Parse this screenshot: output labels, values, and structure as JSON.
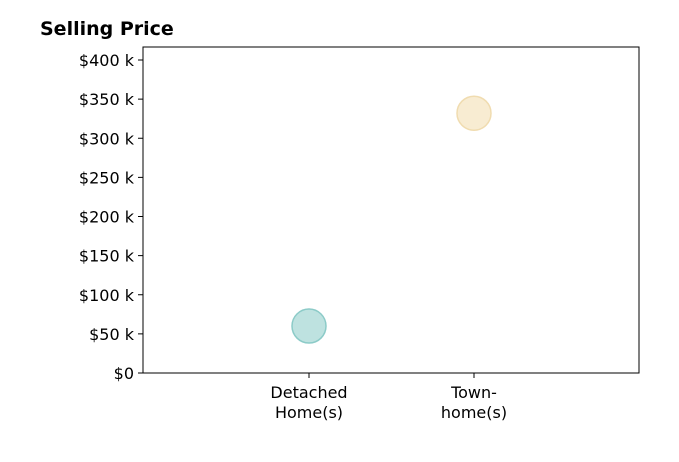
{
  "chart_data": {
    "type": "scatter",
    "title": "Selling Price",
    "xlabel": "",
    "ylabel": "",
    "categories": [
      [
        "Detached",
        "Home(s)"
      ],
      [
        "Town-",
        "home(s)"
      ]
    ],
    "values": [
      60000,
      332000
    ],
    "point_colors": [
      "#a8d8d6",
      "#f5e6c3"
    ],
    "point_edge_colors": [
      "#8ccbc8",
      "#f0dcb0"
    ],
    "ylim": [
      0,
      400000
    ],
    "yticks": [
      {
        "value": 0,
        "label": "$0"
      },
      {
        "value": 50000,
        "label": "$50 k"
      },
      {
        "value": 100000,
        "label": "$100 k"
      },
      {
        "value": 150000,
        "label": "$150 k"
      },
      {
        "value": 200000,
        "label": "$200 k"
      },
      {
        "value": 250000,
        "label": "$250 k"
      },
      {
        "value": 300000,
        "label": "$300 k"
      },
      {
        "value": 350000,
        "label": "$350 k"
      },
      {
        "value": 400000,
        "label": "$400 k"
      }
    ],
    "grid": false,
    "legend": "none"
  }
}
